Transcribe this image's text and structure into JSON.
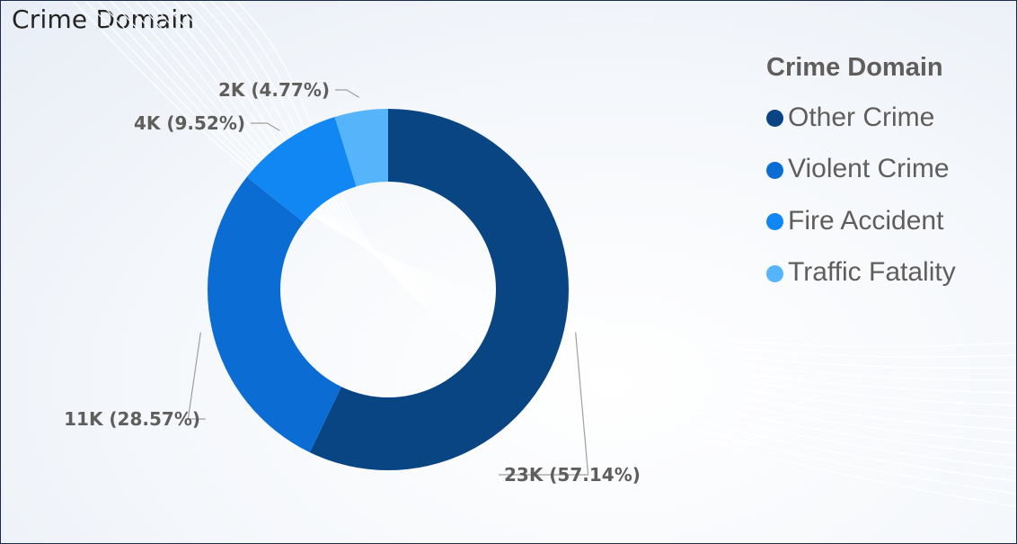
{
  "title": "Crime Domain",
  "chart_data": {
    "type": "pie",
    "variant": "donut",
    "title": "Crime Domain",
    "legend_title": "Crime Domain",
    "legend_position": "right",
    "categories": [
      "Other Crime",
      "Violent Crime",
      "Fire Accident",
      "Traffic Fatality"
    ],
    "percents": [
      57.14,
      28.57,
      9.52,
      4.77
    ],
    "data_labels": [
      "23K (57.14%)",
      "11K (28.57%)",
      "4K (9.52%)",
      "2K (4.77%)"
    ],
    "colors": [
      "#0a4583",
      "#0b6dd4",
      "#1187f4",
      "#55b4fa"
    ]
  }
}
